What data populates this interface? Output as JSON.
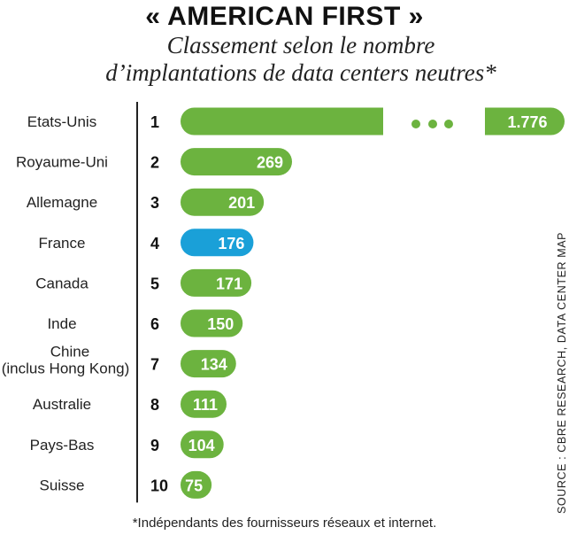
{
  "title": "« AMERICAN FIRST »",
  "subtitle_line1": "Classement selon le nombre",
  "subtitle_line2": "d’implantations de data centers neutres*",
  "footnote": "*Indépendants des fournisseurs réseaux et internet.",
  "source": "SOURCE : CBRE RESEARCH, DATA CENTER MAP",
  "colors": {
    "bar": "#6cb33f",
    "highlight": "#1aa0d8",
    "axis": "#222222",
    "label_text": "#ffffff"
  },
  "chart_data": {
    "type": "bar",
    "orientation": "horizontal",
    "title": "« AMERICAN FIRST »",
    "subtitle": "Classement selon le nombre d’implantations de data centers neutres*",
    "categories": [
      "Etats-Unis",
      "Royaume-Uni",
      "Allemagne",
      "France",
      "Canada",
      "Inde",
      "Chine\n(inclus Hong Kong)",
      "Australie",
      "Pays-Bas",
      "Suisse"
    ],
    "ranks": [
      "1",
      "2",
      "3",
      "4",
      "5",
      "6",
      "7",
      "8",
      "9",
      "10"
    ],
    "values": [
      1776,
      269,
      201,
      176,
      171,
      150,
      134,
      111,
      104,
      75
    ],
    "value_labels": [
      "1.776",
      "269",
      "201",
      "176",
      "171",
      "150",
      "134",
      "111",
      "104",
      "75"
    ],
    "highlight_category": "France",
    "axis_break": {
      "category": "Etats-Unis",
      "symbol": "•••"
    },
    "grid": false,
    "xlabel": "",
    "ylabel": ""
  }
}
